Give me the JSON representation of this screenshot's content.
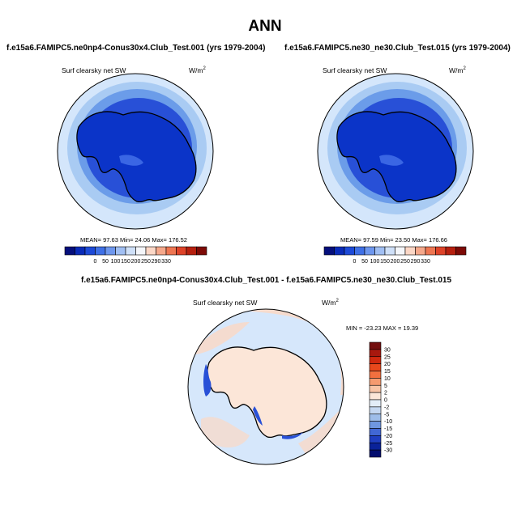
{
  "page_title": "ANN",
  "colors": {
    "ocean_light": "#d4e6fb",
    "ocean_mid": "#a9cbf3",
    "ocean_blue": "#6b9ce9",
    "ocean_deep": "#2850d7",
    "antarctica": "#0b34c8",
    "diff_background": "#d6e7fb",
    "diff_positive": "#fbd8c4",
    "coast": "#000000"
  },
  "chart_data": [
    {
      "type": "heatmap",
      "projection": "south-polar-stereographic",
      "title": "f.e15a6.FAMIPC5.ne0np4-Conus30x4.Club_Test.001 (yrs 1979-2004)",
      "variable": "Surf clearsky net SW",
      "units": "W/m",
      "units_exponent": "2",
      "stats_text": "MEAN= 97.63  Min= 24.06  Max= 176.52",
      "mean": 97.63,
      "min": 24.06,
      "max": 176.52,
      "colorbar": {
        "orientation": "horizontal",
        "labels": [
          "0",
          "50",
          "100",
          "150",
          "200",
          "250",
          "290",
          "330"
        ],
        "colors": [
          "#050f7c",
          "#0a2bb8",
          "#1d4ad8",
          "#3f70e6",
          "#6e97ee",
          "#a1bff3",
          "#cfe0f8",
          "#f4f6fa",
          "#fbd7c6",
          "#f5a88b",
          "#ee7652",
          "#de4329",
          "#b6200f",
          "#7d0a06"
        ]
      }
    },
    {
      "type": "heatmap",
      "projection": "south-polar-stereographic",
      "title": "f.e15a6.FAMIPC5.ne30_ne30.Club_Test.015 (yrs 1979-2004)",
      "variable": "Surf clearsky net SW",
      "units": "W/m",
      "units_exponent": "2",
      "stats_text": "MEAN= 97.59  Min= 23.50  Max= 176.66",
      "mean": 97.59,
      "min": 23.5,
      "max": 176.66,
      "colorbar": {
        "orientation": "horizontal",
        "labels": [
          "0",
          "50",
          "100",
          "150",
          "200",
          "250",
          "290",
          "330"
        ],
        "colors": [
          "#050f7c",
          "#0a2bb8",
          "#1d4ad8",
          "#3f70e6",
          "#6e97ee",
          "#a1bff3",
          "#cfe0f8",
          "#f4f6fa",
          "#fbd7c6",
          "#f5a88b",
          "#ee7652",
          "#de4329",
          "#b6200f",
          "#7d0a06"
        ]
      }
    },
    {
      "type": "heatmap",
      "projection": "south-polar-stereographic",
      "title": "f.e15a6.FAMIPC5.ne0np4-Conus30x4.Club_Test.001 - f.e15a6.FAMIPC5.ne30_ne30.Club_Test.015",
      "variable": "Surf clearsky net SW",
      "units": "W/m",
      "units_exponent": "2",
      "stats_text": "MIN = -23.23 MAX = 19.39",
      "min": -23.23,
      "max": 19.39,
      "colorbar": {
        "orientation": "vertical",
        "labels": [
          "30",
          "25",
          "20",
          "15",
          "10",
          "5",
          "2",
          "0",
          "-2",
          "-5",
          "-10",
          "-15",
          "-20",
          "-25",
          "-30"
        ],
        "colors": [
          "#730e0e",
          "#a8180e",
          "#d0290f",
          "#e8481c",
          "#f2703f",
          "#f59a6f",
          "#f8c4a6",
          "#fce6d8",
          "#e3edf8",
          "#c4d7f1",
          "#9ebde9",
          "#6f97e0",
          "#4167d4",
          "#1f3ec0",
          "#0a2299",
          "#030d6e"
        ]
      }
    }
  ]
}
